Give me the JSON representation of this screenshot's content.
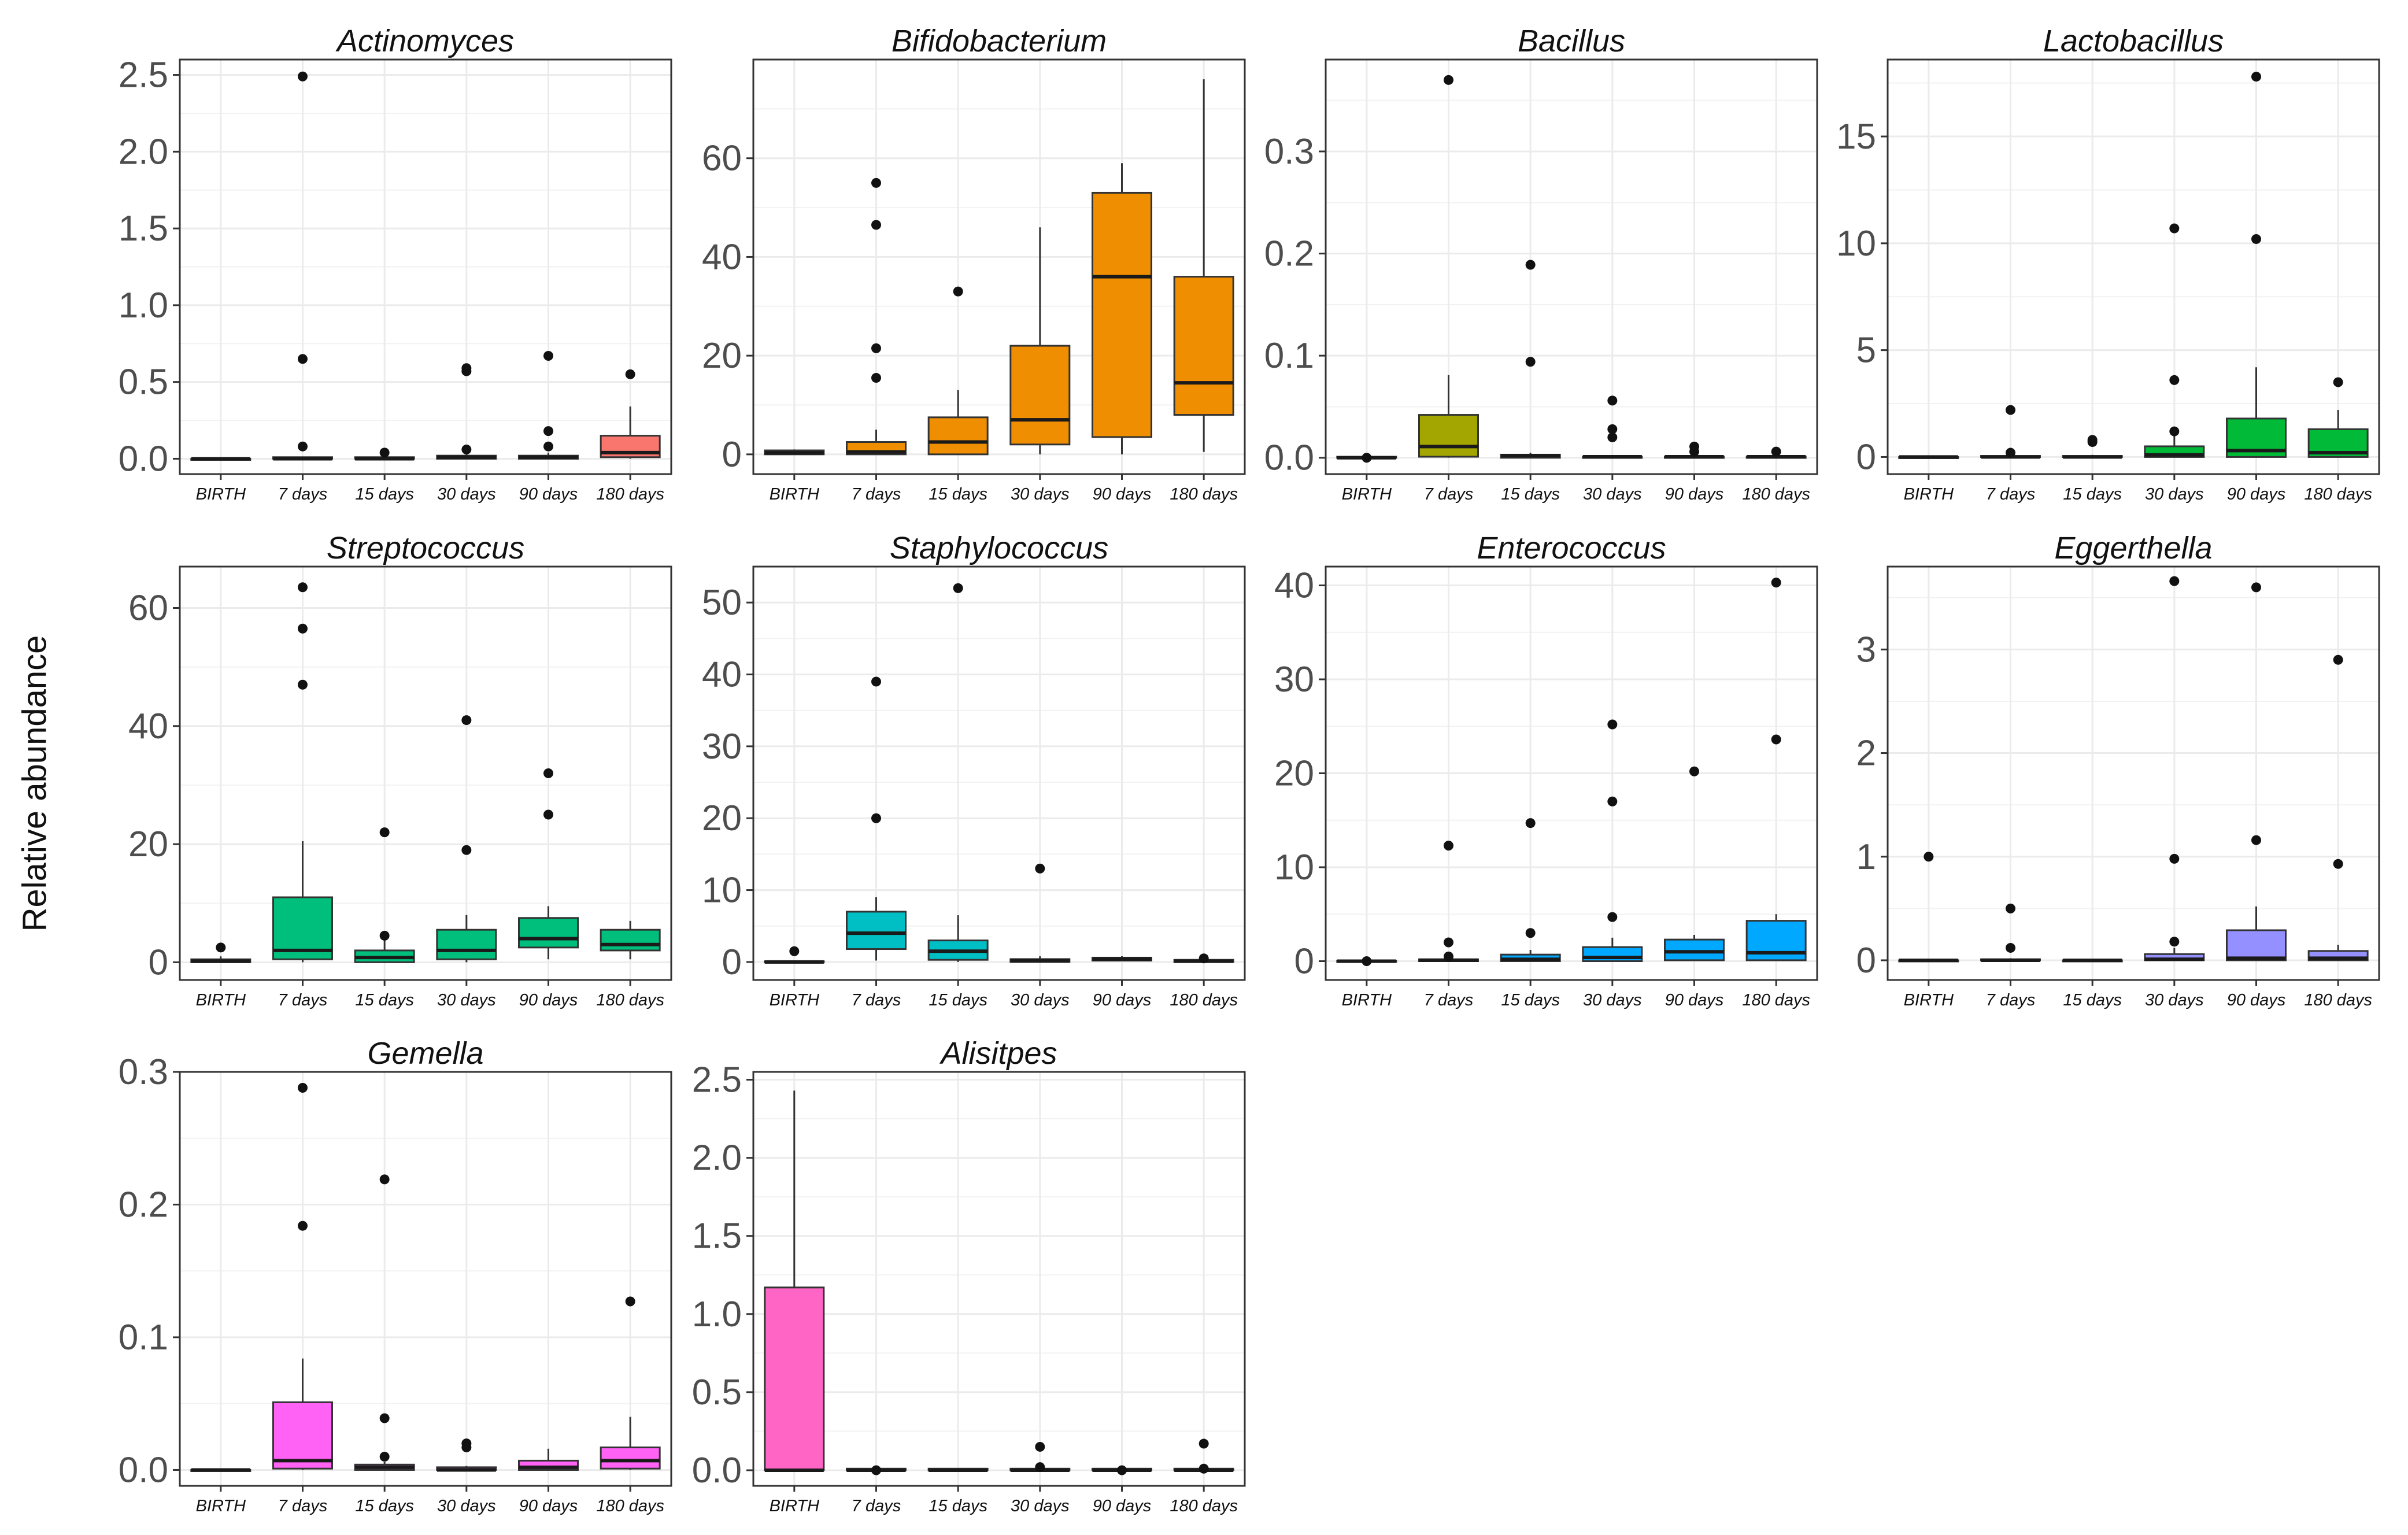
{
  "figure": {
    "ylabel": "Relative abundance"
  },
  "chart_data": [
    {
      "type": "box",
      "title": "Actinomyces",
      "color": "#F8766D",
      "categories": [
        "BIRTH",
        "7 days",
        "15 days",
        "30 days",
        "90 days",
        "180 days"
      ],
      "ylim": [
        -0.1,
        2.6
      ],
      "yticks": [
        0.0,
        0.5,
        1.0,
        1.5,
        2.0,
        2.5
      ],
      "ytick_labels": [
        "0.0",
        "0.5",
        "1.0",
        "1.5",
        "2.0",
        "2.5"
      ],
      "boxes": [
        {
          "q1": 0,
          "median": 0,
          "q3": 0,
          "whisker_low": 0,
          "whisker_high": 0,
          "outliers": []
        },
        {
          "q1": 0,
          "median": 0,
          "q3": 0.01,
          "whisker_low": 0,
          "whisker_high": 0.01,
          "outliers": [
            2.49,
            0.65,
            0.08
          ]
        },
        {
          "q1": 0,
          "median": 0,
          "q3": 0.01,
          "whisker_low": 0,
          "whisker_high": 0.02,
          "outliers": [
            0.04
          ]
        },
        {
          "q1": 0,
          "median": 0.01,
          "q3": 0.02,
          "whisker_low": 0,
          "whisker_high": 0.03,
          "outliers": [
            0.59,
            0.57,
            0.06
          ]
        },
        {
          "q1": 0,
          "median": 0.01,
          "q3": 0.02,
          "whisker_low": 0,
          "whisker_high": 0.04,
          "outliers": [
            0.67,
            0.18,
            0.08
          ]
        },
        {
          "q1": 0.01,
          "median": 0.04,
          "q3": 0.15,
          "whisker_low": 0,
          "whisker_high": 0.34,
          "outliers": [
            0.55
          ]
        }
      ]
    },
    {
      "type": "box",
      "title": "Bifidobacterium",
      "color": "#EE8E00",
      "categories": [
        "BIRTH",
        "7 days",
        "15 days",
        "30 days",
        "90 days",
        "180 days"
      ],
      "ylim": [
        -4,
        80
      ],
      "yticks": [
        0,
        20,
        40,
        60
      ],
      "ytick_labels": [
        "0",
        "20",
        "40",
        "60"
      ],
      "boxes": [
        {
          "q1": 0,
          "median": 0.3,
          "q3": 0.8,
          "whisker_low": 0,
          "whisker_high": 1,
          "outliers": []
        },
        {
          "q1": 0,
          "median": 0.5,
          "q3": 2.5,
          "whisker_low": 0,
          "whisker_high": 5,
          "outliers": [
            55,
            46.5,
            21.5,
            15.5
          ]
        },
        {
          "q1": 0,
          "median": 2.5,
          "q3": 7.5,
          "whisker_low": 0,
          "whisker_high": 13,
          "outliers": [
            33
          ]
        },
        {
          "q1": 2,
          "median": 7,
          "q3": 22,
          "whisker_low": 0,
          "whisker_high": 46,
          "outliers": []
        },
        {
          "q1": 3.5,
          "median": 36,
          "q3": 53,
          "whisker_low": 0,
          "whisker_high": 59,
          "outliers": []
        },
        {
          "q1": 8,
          "median": 14.5,
          "q3": 36,
          "whisker_low": 0.5,
          "whisker_high": 76,
          "outliers": []
        }
      ]
    },
    {
      "type": "box",
      "title": "Bacillus",
      "color": "#A3A500",
      "categories": [
        "BIRTH",
        "7 days",
        "15 days",
        "30 days",
        "90 days",
        "180 days"
      ],
      "ylim": [
        -0.016,
        0.39
      ],
      "yticks": [
        0.0,
        0.1,
        0.2,
        0.3
      ],
      "ytick_labels": [
        "0.0",
        "0.1",
        "0.2",
        "0.3"
      ],
      "boxes": [
        {
          "q1": 0,
          "median": 0,
          "q3": 0.001,
          "whisker_low": 0,
          "whisker_high": 0.001,
          "outliers": [
            0
          ]
        },
        {
          "q1": 0.001,
          "median": 0.011,
          "q3": 0.042,
          "whisker_low": 0,
          "whisker_high": 0.081,
          "outliers": [
            0.37
          ]
        },
        {
          "q1": 0,
          "median": 0.002,
          "q3": 0.003,
          "whisker_low": 0,
          "whisker_high": 0.005,
          "outliers": [
            0.189,
            0.094
          ]
        },
        {
          "q1": 0,
          "median": 0.001,
          "q3": 0.001,
          "whisker_low": 0,
          "whisker_high": 0.002,
          "outliers": [
            0.056,
            0.028,
            0.02
          ]
        },
        {
          "q1": 0,
          "median": 0.001,
          "q3": 0.001,
          "whisker_low": 0,
          "whisker_high": 0.002,
          "outliers": [
            0.011,
            0.006
          ]
        },
        {
          "q1": 0,
          "median": 0.001,
          "q3": 0.001,
          "whisker_low": 0,
          "whisker_high": 0.002,
          "outliers": [
            0.006
          ]
        }
      ]
    },
    {
      "type": "box",
      "title": "Lactobacillus",
      "color": "#00BA38",
      "categories": [
        "BIRTH",
        "7 days",
        "15 days",
        "30 days",
        "90 days",
        "180 days"
      ],
      "ylim": [
        -0.8,
        18.6
      ],
      "yticks": [
        0,
        5,
        10,
        15
      ],
      "ytick_labels": [
        "0",
        "5",
        "10",
        "15"
      ],
      "boxes": [
        {
          "q1": 0,
          "median": 0,
          "q3": 0,
          "whisker_low": 0,
          "whisker_high": 0,
          "outliers": []
        },
        {
          "q1": 0,
          "median": 0,
          "q3": 0.05,
          "whisker_low": 0,
          "whisker_high": 0.1,
          "outliers": [
            2.2,
            0.2
          ]
        },
        {
          "q1": 0,
          "median": 0,
          "q3": 0.05,
          "whisker_low": 0,
          "whisker_high": 0.1,
          "outliers": [
            0.8,
            0.7
          ]
        },
        {
          "q1": 0,
          "median": 0.1,
          "q3": 0.5,
          "whisker_low": 0,
          "whisker_high": 1.0,
          "outliers": [
            10.7,
            3.6,
            1.2
          ]
        },
        {
          "q1": 0,
          "median": 0.3,
          "q3": 1.8,
          "whisker_low": 0,
          "whisker_high": 4.2,
          "outliers": [
            17.8,
            10.2
          ]
        },
        {
          "q1": 0,
          "median": 0.2,
          "q3": 1.3,
          "whisker_low": 0,
          "whisker_high": 2.2,
          "outliers": [
            3.5
          ]
        }
      ]
    },
    {
      "type": "box",
      "title": "Streptococcus",
      "color": "#00BF7D",
      "categories": [
        "BIRTH",
        "7 days",
        "15 days",
        "30 days",
        "90 days",
        "180 days"
      ],
      "ylim": [
        -3,
        67
      ],
      "yticks": [
        0,
        20,
        40,
        60
      ],
      "ytick_labels": [
        "0",
        "20",
        "40",
        "60"
      ],
      "boxes": [
        {
          "q1": 0,
          "median": 0.2,
          "q3": 0.5,
          "whisker_low": 0,
          "whisker_high": 1.0,
          "outliers": [
            2.5
          ]
        },
        {
          "q1": 0.5,
          "median": 2,
          "q3": 11,
          "whisker_low": 0,
          "whisker_high": 20.5,
          "outliers": [
            63.5,
            56.5,
            47
          ]
        },
        {
          "q1": 0,
          "median": 0.8,
          "q3": 2,
          "whisker_low": 0,
          "whisker_high": 4,
          "outliers": [
            22,
            4.5
          ]
        },
        {
          "q1": 0.5,
          "median": 2,
          "q3": 5.5,
          "whisker_low": 0,
          "whisker_high": 8,
          "outliers": [
            41,
            19
          ]
        },
        {
          "q1": 2.5,
          "median": 4,
          "q3": 7.5,
          "whisker_low": 0.5,
          "whisker_high": 9.5,
          "outliers": [
            32,
            25
          ]
        },
        {
          "q1": 2,
          "median": 3,
          "q3": 5.5,
          "whisker_low": 0.5,
          "whisker_high": 7,
          "outliers": []
        }
      ]
    },
    {
      "type": "box",
      "title": "Staphylococcus",
      "color": "#00BFC4",
      "categories": [
        "BIRTH",
        "7 days",
        "15 days",
        "30 days",
        "90 days",
        "180 days"
      ],
      "ylim": [
        -2.5,
        55
      ],
      "yticks": [
        0,
        10,
        20,
        30,
        40,
        50
      ],
      "ytick_labels": [
        "0",
        "10",
        "20",
        "30",
        "40",
        "50"
      ],
      "boxes": [
        {
          "q1": 0,
          "median": 0,
          "q3": 0.1,
          "whisker_low": 0,
          "whisker_high": 0.1,
          "outliers": [
            1.5
          ]
        },
        {
          "q1": 1.8,
          "median": 4,
          "q3": 7,
          "whisker_low": 0.2,
          "whisker_high": 9,
          "outliers": [
            39,
            20
          ]
        },
        {
          "q1": 0.3,
          "median": 1.5,
          "q3": 3,
          "whisker_low": 0,
          "whisker_high": 6.5,
          "outliers": [
            52
          ]
        },
        {
          "q1": 0,
          "median": 0.2,
          "q3": 0.4,
          "whisker_low": 0,
          "whisker_high": 0.8,
          "outliers": [
            13
          ]
        },
        {
          "q1": 0.2,
          "median": 0.4,
          "q3": 0.6,
          "whisker_low": 0.1,
          "whisker_high": 0.8,
          "outliers": []
        },
        {
          "q1": 0,
          "median": 0.1,
          "q3": 0.3,
          "whisker_low": 0,
          "whisker_high": 0.4,
          "outliers": [
            0.5
          ]
        }
      ]
    },
    {
      "type": "box",
      "title": "Enterococcus",
      "color": "#00A9FF",
      "categories": [
        "BIRTH",
        "7 days",
        "15 days",
        "30 days",
        "90 days",
        "180 days"
      ],
      "ylim": [
        -2,
        42
      ],
      "yticks": [
        0,
        10,
        20,
        30,
        40
      ],
      "ytick_labels": [
        "0",
        "10",
        "20",
        "30",
        "40"
      ],
      "boxes": [
        {
          "q1": 0,
          "median": 0,
          "q3": 0.05,
          "whisker_low": 0,
          "whisker_high": 0.05,
          "outliers": [
            0
          ]
        },
        {
          "q1": 0,
          "median": 0.1,
          "q3": 0.2,
          "whisker_low": 0,
          "whisker_high": 0.4,
          "outliers": [
            12.3,
            2,
            0.5
          ]
        },
        {
          "q1": 0,
          "median": 0.2,
          "q3": 0.7,
          "whisker_low": 0,
          "whisker_high": 1.2,
          "outliers": [
            14.7,
            3
          ]
        },
        {
          "q1": 0,
          "median": 0.4,
          "q3": 1.5,
          "whisker_low": 0,
          "whisker_high": 2.5,
          "outliers": [
            25.2,
            17,
            4.7
          ]
        },
        {
          "q1": 0.1,
          "median": 1,
          "q3": 2.3,
          "whisker_low": 0,
          "whisker_high": 2.8,
          "outliers": [
            20.2
          ]
        },
        {
          "q1": 0.1,
          "median": 0.9,
          "q3": 4.3,
          "whisker_low": 0,
          "whisker_high": 5,
          "outliers": [
            40.3,
            23.6
          ]
        }
      ]
    },
    {
      "type": "box",
      "title": "Eggerthella",
      "color": "#9590FF",
      "categories": [
        "BIRTH",
        "7 days",
        "15 days",
        "30 days",
        "90 days",
        "180 days"
      ],
      "ylim": [
        -0.19,
        3.8
      ],
      "yticks": [
        0,
        1,
        2,
        3
      ],
      "ytick_labels": [
        "0",
        "1",
        "2",
        "3"
      ],
      "boxes": [
        {
          "q1": 0,
          "median": 0,
          "q3": 0,
          "whisker_low": 0,
          "whisker_high": 0,
          "outliers": [
            1.0
          ]
        },
        {
          "q1": 0,
          "median": 0,
          "q3": 0.01,
          "whisker_low": 0,
          "whisker_high": 0.02,
          "outliers": [
            0.5,
            0.12
          ]
        },
        {
          "q1": 0,
          "median": 0,
          "q3": 0,
          "whisker_low": 0,
          "whisker_high": 0,
          "outliers": []
        },
        {
          "q1": 0,
          "median": 0.01,
          "q3": 0.06,
          "whisker_low": 0,
          "whisker_high": 0.12,
          "outliers": [
            3.66,
            0.98,
            0.18
          ]
        },
        {
          "q1": 0,
          "median": 0.02,
          "q3": 0.29,
          "whisker_low": 0,
          "whisker_high": 0.52,
          "outliers": [
            3.6,
            1.16
          ]
        },
        {
          "q1": 0,
          "median": 0.02,
          "q3": 0.09,
          "whisker_low": 0,
          "whisker_high": 0.15,
          "outliers": [
            2.9,
            0.93
          ]
        }
      ]
    },
    {
      "type": "box",
      "title": "Gemella",
      "color": "#FF62F5",
      "categories": [
        "BIRTH",
        "7 days",
        "15 days",
        "30 days",
        "90 days",
        "180 days"
      ],
      "ylim": [
        -0.012,
        0.3
      ],
      "yticks": [
        0.0,
        0.1,
        0.2,
        0.3
      ],
      "ytick_labels": [
        "0.0",
        "0.1",
        "0.2",
        "0.3"
      ],
      "boxes": [
        {
          "q1": 0,
          "median": 0,
          "q3": 0,
          "whisker_low": 0,
          "whisker_high": 0,
          "outliers": []
        },
        {
          "q1": 0.001,
          "median": 0.007,
          "q3": 0.051,
          "whisker_low": 0,
          "whisker_high": 0.084,
          "outliers": [
            0.288,
            0.184
          ]
        },
        {
          "q1": 0,
          "median": 0.002,
          "q3": 0.004,
          "whisker_low": 0,
          "whisker_high": 0.006,
          "outliers": [
            0.219,
            0.039,
            0.01
          ]
        },
        {
          "q1": 0,
          "median": 0,
          "q3": 0.002,
          "whisker_low": 0,
          "whisker_high": 0.003,
          "outliers": [
            0.02,
            0.017
          ]
        },
        {
          "q1": 0,
          "median": 0.002,
          "q3": 0.007,
          "whisker_low": 0,
          "whisker_high": 0.016,
          "outliers": []
        },
        {
          "q1": 0.001,
          "median": 0.007,
          "q3": 0.017,
          "whisker_low": 0,
          "whisker_high": 0.04,
          "outliers": [
            0.127
          ]
        }
      ]
    },
    {
      "type": "box",
      "title": "Alisitpes",
      "color": "#FF65C5",
      "categories": [
        "BIRTH",
        "7 days",
        "15 days",
        "30 days",
        "90 days",
        "180 days"
      ],
      "ylim": [
        -0.1,
        2.55
      ],
      "yticks": [
        0.0,
        0.5,
        1.0,
        1.5,
        2.0,
        2.5
      ],
      "ytick_labels": [
        "0.0",
        "0.5",
        "1.0",
        "1.5",
        "2.0",
        "2.5"
      ],
      "boxes": [
        {
          "q1": 0,
          "median": 0,
          "q3": 1.17,
          "whisker_low": 0,
          "whisker_high": 2.43,
          "outliers": []
        },
        {
          "q1": 0,
          "median": 0,
          "q3": 0.01,
          "whisker_low": 0,
          "whisker_high": 0.01,
          "outliers": [
            0
          ]
        },
        {
          "q1": 0,
          "median": 0,
          "q3": 0.01,
          "whisker_low": 0,
          "whisker_high": 0.01,
          "outliers": []
        },
        {
          "q1": 0,
          "median": 0,
          "q3": 0.01,
          "whisker_low": 0,
          "whisker_high": 0.02,
          "outliers": [
            0.15,
            0.02
          ]
        },
        {
          "q1": 0,
          "median": 0,
          "q3": 0.01,
          "whisker_low": 0,
          "whisker_high": 0.01,
          "outliers": [
            0
          ]
        },
        {
          "q1": 0,
          "median": 0,
          "q3": 0.01,
          "whisker_low": 0,
          "whisker_high": 0.02,
          "outliers": [
            0.17,
            0.01
          ]
        }
      ]
    }
  ]
}
